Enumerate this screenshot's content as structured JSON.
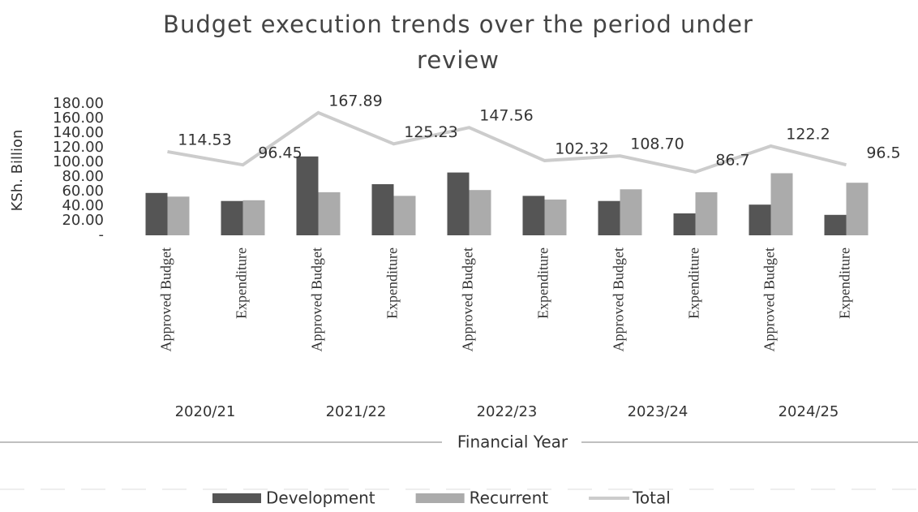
{
  "chart_data": {
    "type": "bar_line",
    "title": "Budget execution trends over the period under review",
    "y_axis_label": "KSh. Billion",
    "x_axis_label": "Financial Year",
    "categories": [
      "Approved Budget",
      "Expenditure",
      "Approved Budget",
      "Expenditure",
      "Approved Budget",
      "Expenditure",
      "Approved Budget",
      "Expenditure",
      "Approved Budget",
      "Expenditure"
    ],
    "group_labels": [
      "2020/21",
      "2021/22",
      "2022/23",
      "2023/24",
      "2024/25"
    ],
    "series": [
      {
        "name": "Development",
        "type": "bar",
        "color": "#555555",
        "values": [
          58,
          47,
          108,
          70,
          86,
          54,
          47,
          30,
          42,
          28
        ]
      },
      {
        "name": "Recurrent",
        "type": "bar",
        "color": "#ababab",
        "values": [
          53,
          48,
          59,
          54,
          62,
          49,
          63,
          59,
          85,
          72
        ]
      },
      {
        "name": "Total",
        "type": "line",
        "color": "#cccccc",
        "values": [
          114.53,
          96.45,
          167.89,
          125.23,
          147.56,
          102.32,
          108.7,
          86.7,
          122.2,
          96.5
        ],
        "value_labels": [
          "114.53",
          "96.45",
          "167.89",
          "125.23",
          "147.56",
          "102.32",
          "108.70",
          "86.7",
          "122.2",
          "96.5"
        ]
      }
    ],
    "ylim": [
      0,
      180
    ],
    "yticks": [
      {
        "value": 0,
        "label": "-"
      },
      {
        "value": 20,
        "label": "20.00"
      },
      {
        "value": 40,
        "label": "40.00"
      },
      {
        "value": 60,
        "label": "60.00"
      },
      {
        "value": 80,
        "label": "80.00"
      },
      {
        "value": 100,
        "label": "100.00"
      },
      {
        "value": 120,
        "label": "120.00"
      },
      {
        "value": 140,
        "label": "140.00"
      },
      {
        "value": 160,
        "label": "160.00"
      },
      {
        "value": 180,
        "label": "180.00"
      }
    ],
    "legend": "bottom"
  }
}
